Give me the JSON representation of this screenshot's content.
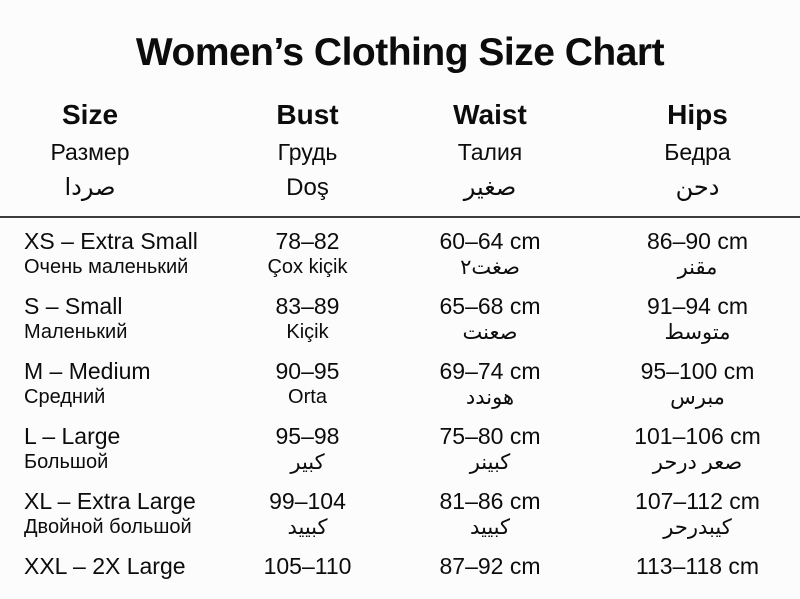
{
  "title": "Women’s Clothing Size Chart",
  "colors": {
    "background": "#fcfcfc",
    "text": "#0c0c0c",
    "divider": "#3d3d3d"
  },
  "chart_data": {
    "type": "table",
    "title": "Women’s Clothing Size Chart",
    "columns": [
      {
        "en": "Size",
        "ru": "Размер",
        "alt": "صردا"
      },
      {
        "en": "Bust",
        "ru": "Грудь",
        "alt": "Doş"
      },
      {
        "en": "Waist",
        "ru": "Талия",
        "alt": "صغير"
      },
      {
        "en": "Hips",
        "ru": "Бедра",
        "alt": "دحن"
      }
    ],
    "rows": [
      {
        "size": "XS – Extra Small",
        "size_alt": "Очень маленький",
        "bust": "78–82",
        "bust_alt": "Çox kiçik",
        "waist": "60–64 cm",
        "waist_alt": "صغت٢",
        "hips": "86–90 cm",
        "hips_alt": "مقنر"
      },
      {
        "size": "S – Small",
        "size_alt": "Маленький",
        "bust": "83–89",
        "bust_alt": "Kiçik",
        "waist": "65–68 cm",
        "waist_alt": "صعنت",
        "hips": "91–94 cm",
        "hips_alt": "متوسط"
      },
      {
        "size": "M – Medium",
        "size_alt": "Средний",
        "bust": "90–95",
        "bust_alt": "Orta",
        "waist": "69–74 cm",
        "waist_alt": "هوندد",
        "hips": "95–100 cm",
        "hips_alt": "مبرس"
      },
      {
        "size": "L – Large",
        "size_alt": "Большой",
        "bust": "95–98",
        "bust_alt": "كبير",
        "waist": "75–80 cm",
        "waist_alt": "كبينر",
        "hips": "101–106 cm",
        "hips_alt": "صعر درحر"
      },
      {
        "size": "XL – Extra Large",
        "size_alt": "Двойной большой",
        "bust": "99–104",
        "bust_alt": "كبييد",
        "waist": "81–86 cm",
        "waist_alt": "كبييد",
        "hips": "107–112 cm",
        "hips_alt": "كيبدرحر"
      },
      {
        "size": "XXL – 2X Large",
        "bust": "105–110",
        "waist": "87–92 cm",
        "hips": "113–118 cm"
      }
    ]
  }
}
